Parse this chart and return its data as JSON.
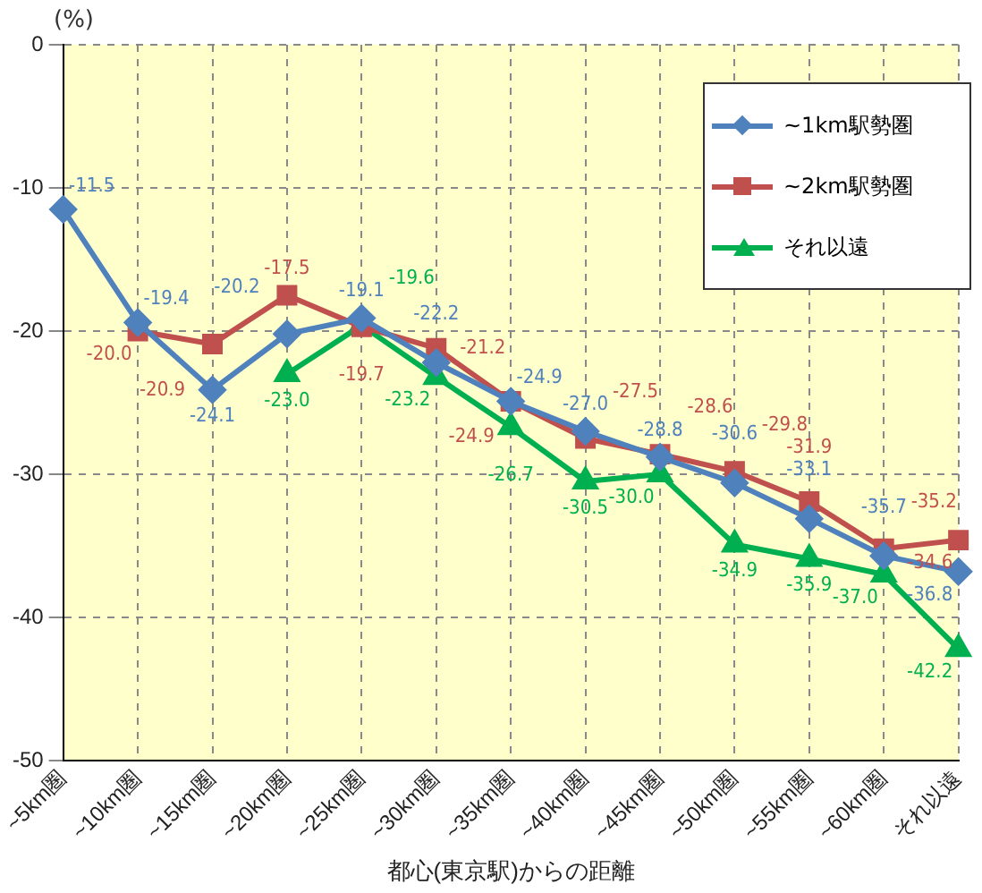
{
  "chart_data": {
    "type": "line",
    "ylabel": "(%)",
    "xlabel": "都心(東京駅)からの距離",
    "categories": [
      "~5km圏",
      "~10km圏",
      "~15km圏",
      "~20km圏",
      "~25km圏",
      "~30km圏",
      "~35km圏",
      "~40km圏",
      "~45km圏",
      "~50km圏",
      "~55km圏",
      "~60km圏",
      "それ以遠"
    ],
    "series": [
      {
        "name": "~1km駅勢圏",
        "color": "#4f81bd",
        "marker": "diamond",
        "values": [
          -11.5,
          -19.4,
          -24.1,
          -20.2,
          -19.1,
          -22.2,
          -24.9,
          -27.0,
          -28.8,
          -30.6,
          -33.1,
          -35.7,
          -36.8
        ],
        "value_labels": [
          "-11.5",
          "-19.4",
          "-24.1",
          "-20.2",
          "-19.1",
          "-22.2",
          "-24.9",
          "-27.0",
          "-28.8",
          "-30.6",
          "-33.1",
          "-35.7",
          "-36.8"
        ]
      },
      {
        "name": "~2km駅勢圏",
        "color": "#c0504d",
        "marker": "square",
        "values": [
          null,
          -20.0,
          -20.9,
          -17.5,
          -19.7,
          -21.2,
          -24.9,
          -27.5,
          -28.6,
          -29.8,
          -31.9,
          -35.2,
          -34.6
        ],
        "value_labels": [
          null,
          "-20.0",
          "-20.9",
          "-17.5",
          "-19.7",
          "-21.2",
          "-24.9",
          "-27.5",
          "-28.6",
          "-29.8",
          "-31.9",
          "-35.2",
          "-34.6"
        ]
      },
      {
        "name": "それ以遠",
        "color": "#00b050",
        "marker": "triangle",
        "values": [
          null,
          null,
          null,
          -23.0,
          -19.6,
          -23.2,
          -26.7,
          -30.5,
          -30.0,
          -34.9,
          -35.9,
          -37.0,
          -42.2
        ],
        "value_labels": [
          null,
          null,
          null,
          "-23.0",
          "-19.6",
          "-23.2",
          "-26.7",
          "-30.5",
          "-30.0",
          "-34.9",
          "-35.9",
          "-37.0",
          "-42.2"
        ]
      }
    ],
    "ylim": [
      -50,
      0
    ],
    "yticks": [
      -50,
      -40,
      -30,
      -20,
      -10,
      0
    ],
    "grid": true,
    "legend": "top right"
  }
}
